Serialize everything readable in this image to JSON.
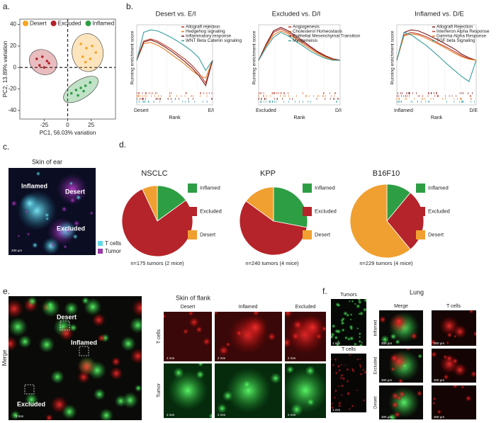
{
  "chart_data": [
    {
      "type": "scatter",
      "xlabel": "PC1, 56.03% variation",
      "ylabel": "PC2, 13.89% variation",
      "xlim": [
        -51,
        51
      ],
      "ylim": [
        -48,
        45
      ],
      "xticks": [
        -25,
        0,
        25
      ],
      "yticks": [
        -40,
        -20,
        0,
        20,
        40
      ],
      "legend": "top",
      "series": [
        {
          "name": "Desert",
          "color": "#f5a623",
          "x": [
            14,
            20,
            26,
            16,
            24,
            30,
            19
          ],
          "values": [
            22,
            18,
            20,
            10,
            8,
            14,
            5
          ]
        },
        {
          "name": "Excluded",
          "color": "#b5242a",
          "x": [
            -33,
            -27,
            -22,
            -30,
            -25,
            -20
          ],
          "values": [
            8,
            10,
            6,
            2,
            0,
            4
          ]
        },
        {
          "name": "Inflamed",
          "color": "#2e9e44",
          "x": [
            4,
            9,
            14,
            19,
            24,
            11,
            17
          ],
          "values": [
            -24,
            -21,
            -19,
            -17,
            -14,
            -26,
            -22
          ]
        }
      ]
    },
    {
      "type": "line",
      "title": "Desert vs. E/I",
      "ylabel": "Running enrichment score",
      "xlabel": "Rank",
      "x_start_label": "Desert",
      "x_end_label": "E/I",
      "ylim": [
        -0.6,
        0.7
      ],
      "series": [
        {
          "name": "Allograft rejection",
          "color": "#c0392b",
          "values": [
            0,
            0.38,
            0.42,
            0.38,
            0.3,
            0.22,
            0.12,
            0.02,
            -0.1,
            -0.25,
            -0.45,
            0
          ]
        },
        {
          "name": "Hedgehog signaling",
          "color": "#e67e22",
          "values": [
            0,
            0.33,
            0.35,
            0.3,
            0.22,
            0.12,
            0.02,
            -0.08,
            -0.2,
            -0.3,
            -0.35,
            0
          ]
        },
        {
          "name": "Inflammatory response",
          "color": "#7a1a1a",
          "values": [
            0,
            0.36,
            0.4,
            0.35,
            0.27,
            0.18,
            0.08,
            -0.03,
            -0.15,
            -0.3,
            -0.5,
            0
          ]
        },
        {
          "name": "WNT Beta Catenin signaling",
          "color": "#3a9e9e",
          "values": [
            0,
            0.55,
            0.6,
            0.58,
            0.52,
            0.45,
            0.37,
            0.28,
            0.18,
            0.05,
            -0.2,
            0
          ]
        }
      ]
    },
    {
      "type": "line",
      "title": "Excluded vs. D/I",
      "ylabel": "Running enrichment score",
      "xlabel": "Rank",
      "x_start_label": "Excluded",
      "x_end_label": "D/I",
      "ylim": [
        -0.6,
        0.7
      ],
      "series": [
        {
          "name": "Angiogenesis",
          "color": "#c0392b",
          "values": [
            0,
            0.3,
            0.55,
            0.62,
            0.55,
            0.45,
            0.35,
            0.25,
            0.15,
            0.08,
            0.02,
            0
          ]
        },
        {
          "name": "Cholesterol Homeostasis",
          "color": "#e67e22",
          "values": [
            0,
            0.28,
            0.5,
            0.58,
            0.52,
            0.42,
            0.32,
            0.22,
            0.13,
            0.06,
            0.01,
            0
          ]
        },
        {
          "name": "Epithelial Mesenchymal Transition",
          "color": "#7a1a1a",
          "values": [
            0,
            0.32,
            0.58,
            0.65,
            0.58,
            0.48,
            0.38,
            0.27,
            0.17,
            0.09,
            0.03,
            0
          ]
        },
        {
          "name": "Myogeneisis",
          "color": "#3a9e9e",
          "values": [
            0,
            0.25,
            0.45,
            0.55,
            0.48,
            0.38,
            0.28,
            0.18,
            0.1,
            0.04,
            0,
            0
          ]
        }
      ]
    },
    {
      "type": "line",
      "title": "Inflamed vs. D/E",
      "ylabel": "Running enrichment score",
      "xlabel": "Rank",
      "x_start_label": "Inflamed",
      "x_end_label": "D/E",
      "ylim": [
        -0.6,
        0.7
      ],
      "series": [
        {
          "name": "Allograft Rejection",
          "color": "#7a1a1a",
          "values": [
            0,
            0.55,
            0.6,
            0.58,
            0.52,
            0.45,
            0.38,
            0.3,
            0.22,
            0.12,
            0.05,
            0
          ]
        },
        {
          "name": "Interferon Alpha Response",
          "color": "#c0392b",
          "values": [
            0,
            0.5,
            0.55,
            0.52,
            0.47,
            0.4,
            0.32,
            0.25,
            0.17,
            0.09,
            0.03,
            0
          ]
        },
        {
          "name": "Gamma Alpha Response",
          "color": "#e67e22",
          "values": [
            0,
            0.48,
            0.52,
            0.5,
            0.44,
            0.37,
            0.3,
            0.22,
            0.14,
            0.07,
            0.02,
            0
          ]
        },
        {
          "name": "TGF beta Signaling",
          "color": "#3a9e9e",
          "values": [
            0,
            0.55,
            0.5,
            0.4,
            0.3,
            0.18,
            0.05,
            -0.08,
            -0.2,
            -0.32,
            -0.42,
            0
          ]
        }
      ]
    },
    {
      "type": "pie",
      "title": "NSCLC",
      "caption": "n=175 tumors (2 mice)",
      "categories": [
        "Inflamed",
        "Excluded",
        "Desert"
      ],
      "values": [
        15,
        78,
        7
      ],
      "colors": [
        "#2e9e44",
        "#b5242a",
        "#f0a030"
      ]
    },
    {
      "type": "pie",
      "title": "KPP",
      "caption": "n=240 tumors (4 mice)",
      "categories": [
        "Inflamed",
        "Excluded",
        "Desert"
      ],
      "values": [
        28,
        57,
        15
      ],
      "colors": [
        "#2e9e44",
        "#b5242a",
        "#f0a030"
      ]
    },
    {
      "type": "pie",
      "title": "B16F10",
      "caption": "n=229 tumors (4 mice)",
      "categories": [
        "Inflamed",
        "Excluded",
        "Desert"
      ],
      "values": [
        11,
        28,
        61
      ],
      "colors": [
        "#2e9e44",
        "#b5242a",
        "#f0a030"
      ]
    }
  ],
  "panels": {
    "labels": [
      "a.",
      "b.",
      "c.",
      "d.",
      "e.",
      "f."
    ],
    "c": {
      "title": "Skin of ear",
      "labels": [
        "Inflamed",
        "Desert",
        "Excluded"
      ],
      "legend": [
        "T cells",
        "Tumor"
      ],
      "scale": "200 µm"
    },
    "e": {
      "side_label": "Merge",
      "labels": [
        "Desert",
        "Inflamed",
        "Excluded"
      ],
      "scale": "2 mm",
      "grid_title": "Skin of flank",
      "columns": [
        "Desert",
        "Inflamed",
        "Excluded"
      ],
      "rows": [
        "T cells",
        "Tumor"
      ],
      "cell_scale": "2 mm"
    },
    "f": {
      "left_titles": [
        "Tumors",
        "T cells"
      ],
      "left_scale": "1 mm",
      "title": "Lung",
      "columns": [
        "Merge",
        "T cells"
      ],
      "rows": [
        "Inflamed",
        "Excluded",
        "Desert"
      ],
      "cell_scale": "300 µm"
    }
  }
}
